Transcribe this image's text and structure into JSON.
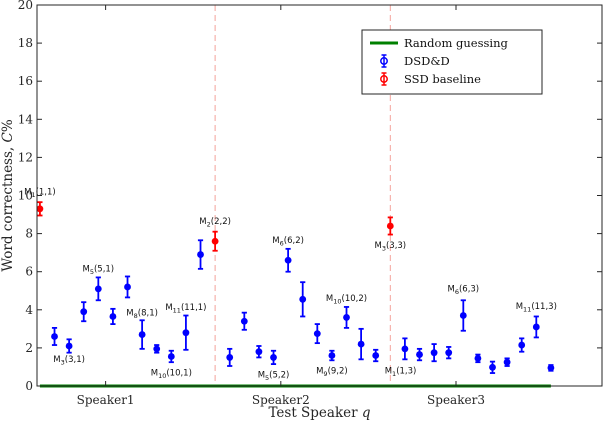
{
  "chart_data": {
    "type": "scatter",
    "xlabel": "Test Speaker q",
    "ylabel": "Word correctness, C%",
    "ylim": [
      0,
      20
    ],
    "yticks": [
      0,
      2,
      4,
      6,
      8,
      10,
      12,
      14,
      16,
      18,
      20
    ],
    "xlim": [
      -0.2,
      38.5
    ],
    "categories": [
      {
        "label": "Speaker1",
        "x": 4.5
      },
      {
        "label": "Speaker2",
        "x": 16.5
      },
      {
        "label": "Speaker3",
        "x": 28.5
      }
    ],
    "separators": [
      12,
      24
    ],
    "grid": false,
    "legend": {
      "position": "top-right",
      "items": [
        {
          "label": "Random guessing",
          "kind": "line",
          "color": "#008000"
        },
        {
          "label": "DSD&D",
          "kind": "errorbar",
          "color": "#0000ff"
        },
        {
          "label": "SSD baseline",
          "kind": "errorbar",
          "color": "#ff0000"
        }
      ]
    },
    "random_guessing": {
      "name": "Random guessing",
      "color": "#008000",
      "x": [
        0,
        35
      ],
      "y": 0
    },
    "series": [
      {
        "name": "DSD&D",
        "color": "#0000ff",
        "points": [
          {
            "x": 1,
            "y": 2.6,
            "err": 0.45
          },
          {
            "x": 2,
            "y": 2.1,
            "err": 0.35
          },
          {
            "x": 3,
            "y": 3.9,
            "err": 0.5
          },
          {
            "x": 4,
            "y": 5.1,
            "err": 0.6
          },
          {
            "x": 5,
            "y": 3.65,
            "err": 0.4
          },
          {
            "x": 6,
            "y": 5.2,
            "err": 0.55
          },
          {
            "x": 7,
            "y": 2.7,
            "err": 0.75
          },
          {
            "x": 8,
            "y": 1.95,
            "err": 0.2
          },
          {
            "x": 9,
            "y": 1.55,
            "err": 0.3
          },
          {
            "x": 10,
            "y": 2.8,
            "err": 0.9
          },
          {
            "x": 11,
            "y": 6.9,
            "err": 0.75
          },
          {
            "x": 13,
            "y": 1.5,
            "err": 0.45
          },
          {
            "x": 14,
            "y": 3.4,
            "err": 0.45
          },
          {
            "x": 15,
            "y": 1.8,
            "err": 0.3
          },
          {
            "x": 16,
            "y": 1.5,
            "err": 0.35
          },
          {
            "x": 17,
            "y": 6.6,
            "err": 0.6
          },
          {
            "x": 18,
            "y": 4.55,
            "err": 0.9
          },
          {
            "x": 19,
            "y": 2.75,
            "err": 0.5
          },
          {
            "x": 20,
            "y": 1.6,
            "err": 0.25
          },
          {
            "x": 21,
            "y": 3.6,
            "err": 0.55
          },
          {
            "x": 22,
            "y": 2.2,
            "err": 0.8
          },
          {
            "x": 23,
            "y": 1.6,
            "err": 0.3
          },
          {
            "x": 25,
            "y": 1.95,
            "err": 0.55
          },
          {
            "x": 26,
            "y": 1.65,
            "err": 0.3
          },
          {
            "x": 27,
            "y": 1.75,
            "err": 0.45
          },
          {
            "x": 28,
            "y": 1.75,
            "err": 0.3
          },
          {
            "x": 29,
            "y": 3.7,
            "err": 0.8
          },
          {
            "x": 30,
            "y": 1.45,
            "err": 0.2
          },
          {
            "x": 31,
            "y": 0.98,
            "err": 0.3
          },
          {
            "x": 32,
            "y": 1.25,
            "err": 0.2
          },
          {
            "x": 33,
            "y": 2.15,
            "err": 0.35
          },
          {
            "x": 34,
            "y": 3.1,
            "err": 0.55
          },
          {
            "x": 35,
            "y": 0.95,
            "err": 0.15
          }
        ]
      },
      {
        "name": "SSD baseline",
        "color": "#ff0000",
        "points": [
          {
            "x": 0,
            "y": 9.3,
            "err": 0.35
          },
          {
            "x": 12,
            "y": 7.6,
            "err": 0.5
          },
          {
            "x": 24,
            "y": 8.4,
            "err": 0.45
          }
        ]
      }
    ],
    "annotations": [
      {
        "sub": "1",
        "args": "(1,1)",
        "x": 0,
        "y": 10.05,
        "anchor": "middle",
        "dx": 0
      },
      {
        "sub": "3",
        "args": "(3,1)",
        "x": 2,
        "y": 1.25,
        "anchor": "middle",
        "dx": 0
      },
      {
        "sub": "5",
        "args": "(5,1)",
        "x": 4,
        "y": 6.0,
        "anchor": "middle",
        "dx": 0
      },
      {
        "sub": "8",
        "args": "(8,1)",
        "x": 7,
        "y": 3.7,
        "anchor": "middle",
        "dx": 0
      },
      {
        "sub": "10",
        "args": "(10,1)",
        "x": 9,
        "y": 0.55,
        "anchor": "middle",
        "dx": 0
      },
      {
        "sub": "11",
        "args": "(11,1)",
        "x": 10,
        "y": 4.0,
        "anchor": "middle",
        "dx": 0
      },
      {
        "sub": "2",
        "args": "(2,2)",
        "x": 12,
        "y": 8.5,
        "anchor": "middle",
        "dx": 0
      },
      {
        "sub": "6",
        "args": "(6,2)",
        "x": 17,
        "y": 7.5,
        "anchor": "middle",
        "dx": 0
      },
      {
        "sub": "5",
        "args": "(5,2)",
        "x": 16,
        "y": 0.45,
        "anchor": "middle",
        "dx": 0
      },
      {
        "sub": "10",
        "args": "(10,2)",
        "x": 21,
        "y": 4.45,
        "anchor": "middle",
        "dx": 0
      },
      {
        "sub": "9",
        "args": "(9,2)",
        "x": 20,
        "y": 0.65,
        "anchor": "middle",
        "dx": 0
      },
      {
        "sub": "1",
        "args": "(1,3)",
        "x": 24.7,
        "y": 0.65,
        "anchor": "middle",
        "dx": 0
      },
      {
        "sub": "3",
        "args": "(3,3)",
        "x": 24,
        "y": 7.25,
        "anchor": "middle",
        "dx": 0
      },
      {
        "sub": "6",
        "args": "(6,3)",
        "x": 29,
        "y": 4.95,
        "anchor": "middle",
        "dx": 0
      },
      {
        "sub": "11",
        "args": "(11,3)",
        "x": 34,
        "y": 4.05,
        "anchor": "middle",
        "dx": 0
      }
    ],
    "annotation_letter": "M"
  }
}
